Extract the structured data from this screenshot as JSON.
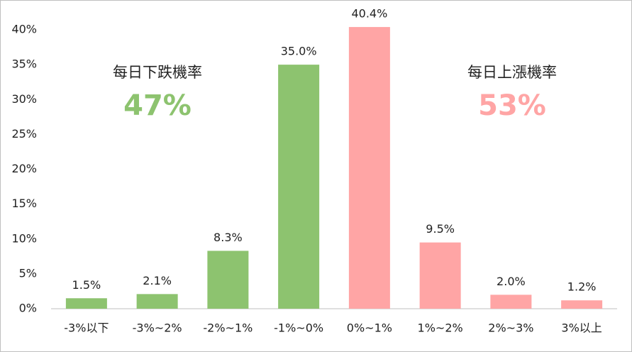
{
  "chart_data": {
    "type": "bar",
    "categories": [
      "-3%以下",
      "-3%~2%",
      "-2%~1%",
      "-1%~0%",
      "0%~1%",
      "1%~2%",
      "2%~3%",
      "3%以上"
    ],
    "values": [
      1.5,
      2.1,
      8.3,
      35.0,
      40.4,
      9.5,
      2.0,
      1.2
    ],
    "value_labels": [
      "1.5%",
      "2.1%",
      "8.3%",
      "35.0%",
      "40.4%",
      "9.5%",
      "2.0%",
      "1.2%"
    ],
    "colors": [
      "#8dc36f",
      "#8dc36f",
      "#8dc36f",
      "#8dc36f",
      "#ffa5a5",
      "#ffa5a5",
      "#ffa5a5",
      "#ffa5a5"
    ],
    "ylim": [
      0,
      40
    ],
    "yticks": [
      {
        "value": 0,
        "label": "0%"
      },
      {
        "value": 5,
        "label": "5%"
      },
      {
        "value": 10,
        "label": "10%"
      },
      {
        "value": 15,
        "label": "15%"
      },
      {
        "value": 20,
        "label": "20%"
      },
      {
        "value": 25,
        "label": "25%"
      },
      {
        "value": 30,
        "label": "30%"
      },
      {
        "value": 35,
        "label": "35%"
      },
      {
        "value": 40,
        "label": "40%"
      }
    ],
    "annotations": [
      {
        "text": "每日下跌機率",
        "value": "47%",
        "color": "#8dc36f"
      },
      {
        "text": "每日上漲機率",
        "value": "53%",
        "color": "#ffa5a5"
      }
    ]
  }
}
